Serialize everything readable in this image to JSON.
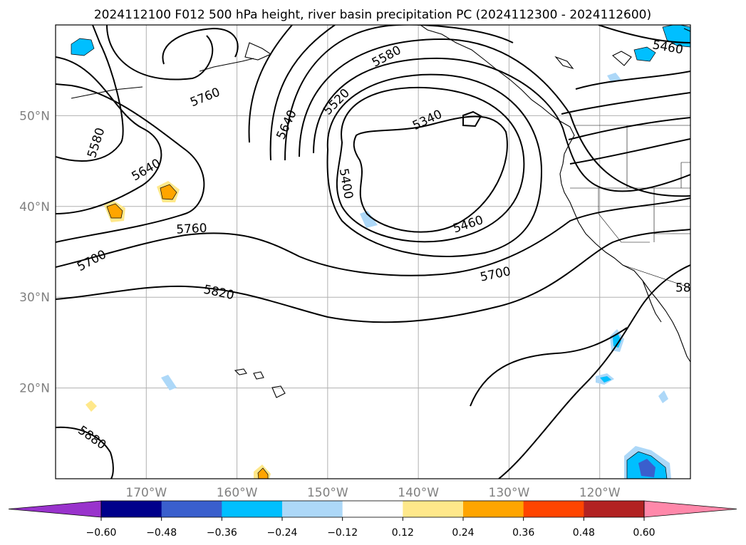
{
  "title": "2024112100 F012 500 hPa height, river basin precipitation PC (2024112300 - 2024112600)",
  "map": {
    "lon_range": [
      -180,
      -110
    ],
    "lat_range": [
      10,
      60
    ],
    "lon_ticks": [
      "170°W",
      "160°W",
      "150°W",
      "140°W",
      "130°W",
      "120°W"
    ],
    "lat_ticks": [
      "50°N",
      "40°N",
      "30°N",
      "20°N"
    ],
    "gridlines": true
  },
  "contours": {
    "variable": "500 hPa height",
    "labels": [
      {
        "text": "5460",
        "lon": -112.5,
        "lat": 57.5,
        "angle": 10
      },
      {
        "text": "5580",
        "lon": -143.5,
        "lat": 56.5,
        "angle": -28
      },
      {
        "text": "5760",
        "lon": -163.5,
        "lat": 52.0,
        "angle": -22
      },
      {
        "text": "5520",
        "lon": -149.0,
        "lat": 51.5,
        "angle": -45
      },
      {
        "text": "5340",
        "lon": -139.0,
        "lat": 49.5,
        "angle": -25
      },
      {
        "text": "5640",
        "lon": -154.5,
        "lat": 49.0,
        "angle": -65
      },
      {
        "text": "5580",
        "lon": -175.5,
        "lat": 47.0,
        "angle": -72
      },
      {
        "text": "5640",
        "lon": -170.0,
        "lat": 44.0,
        "angle": -30
      },
      {
        "text": "5400",
        "lon": -148.0,
        "lat": 42.5,
        "angle": 80
      },
      {
        "text": "5460",
        "lon": -134.5,
        "lat": 38.0,
        "angle": -18
      },
      {
        "text": "5760",
        "lon": -165.0,
        "lat": 37.5,
        "angle": -3
      },
      {
        "text": "5700",
        "lon": -176.0,
        "lat": 34.0,
        "angle": -28
      },
      {
        "text": "5700",
        "lon": -131.5,
        "lat": 32.5,
        "angle": -12
      },
      {
        "text": "5820",
        "lon": -162.0,
        "lat": 30.5,
        "angle": 12
      },
      {
        "text": "58",
        "lon": -110.8,
        "lat": 31.0,
        "angle": 0
      },
      {
        "text": "5880",
        "lon": -176.0,
        "lat": 14.5,
        "angle": 35
      }
    ]
  },
  "colorbar": {
    "ticks": [
      "−0.60",
      "−0.48",
      "−0.36",
      "−0.24",
      "−0.12",
      "0.12",
      "0.24",
      "0.36",
      "0.48",
      "0.60"
    ],
    "levels": [
      -0.6,
      -0.48,
      -0.36,
      -0.24,
      -0.12,
      0.12,
      0.24,
      0.36,
      0.48,
      0.6
    ],
    "colors": [
      "#9933cc",
      "#00008b",
      "#3a5fcd",
      "#00bfff",
      "#add8f8",
      "#ffffff",
      "#ffe88a",
      "#ffa500",
      "#ff4500",
      "#b22222",
      "#ff88aa"
    ],
    "extend": "both"
  }
}
